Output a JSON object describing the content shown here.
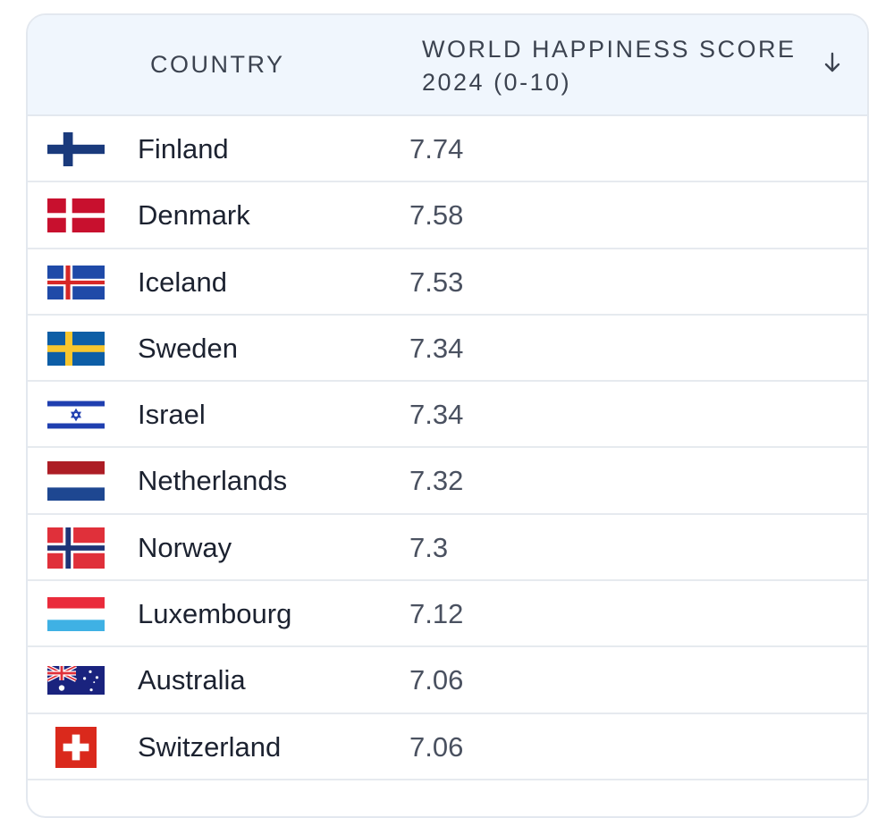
{
  "table": {
    "header": {
      "country": "COUNTRY",
      "score_line1": "WORLD HAPPINESS SCORE",
      "score_line2": "2024 (0-10)",
      "sort_icon": "arrow-down-icon"
    },
    "rows": [
      {
        "country": "Finland",
        "score": "7.74",
        "flag": "finland-flag-icon"
      },
      {
        "country": "Denmark",
        "score": "7.58",
        "flag": "denmark-flag-icon"
      },
      {
        "country": "Iceland",
        "score": "7.53",
        "flag": "iceland-flag-icon"
      },
      {
        "country": "Sweden",
        "score": "7.34",
        "flag": "sweden-flag-icon"
      },
      {
        "country": "Israel",
        "score": "7.34",
        "flag": "israel-flag-icon"
      },
      {
        "country": "Netherlands",
        "score": "7.32",
        "flag": "netherlands-flag-icon"
      },
      {
        "country": "Norway",
        "score": "7.3",
        "flag": "norway-flag-icon"
      },
      {
        "country": "Luxembourg",
        "score": "7.12",
        "flag": "luxembourg-flag-icon"
      },
      {
        "country": "Australia",
        "score": "7.06",
        "flag": "australia-flag-icon"
      },
      {
        "country": "Switzerland",
        "score": "7.06",
        "flag": "switzerland-flag-icon"
      }
    ]
  }
}
